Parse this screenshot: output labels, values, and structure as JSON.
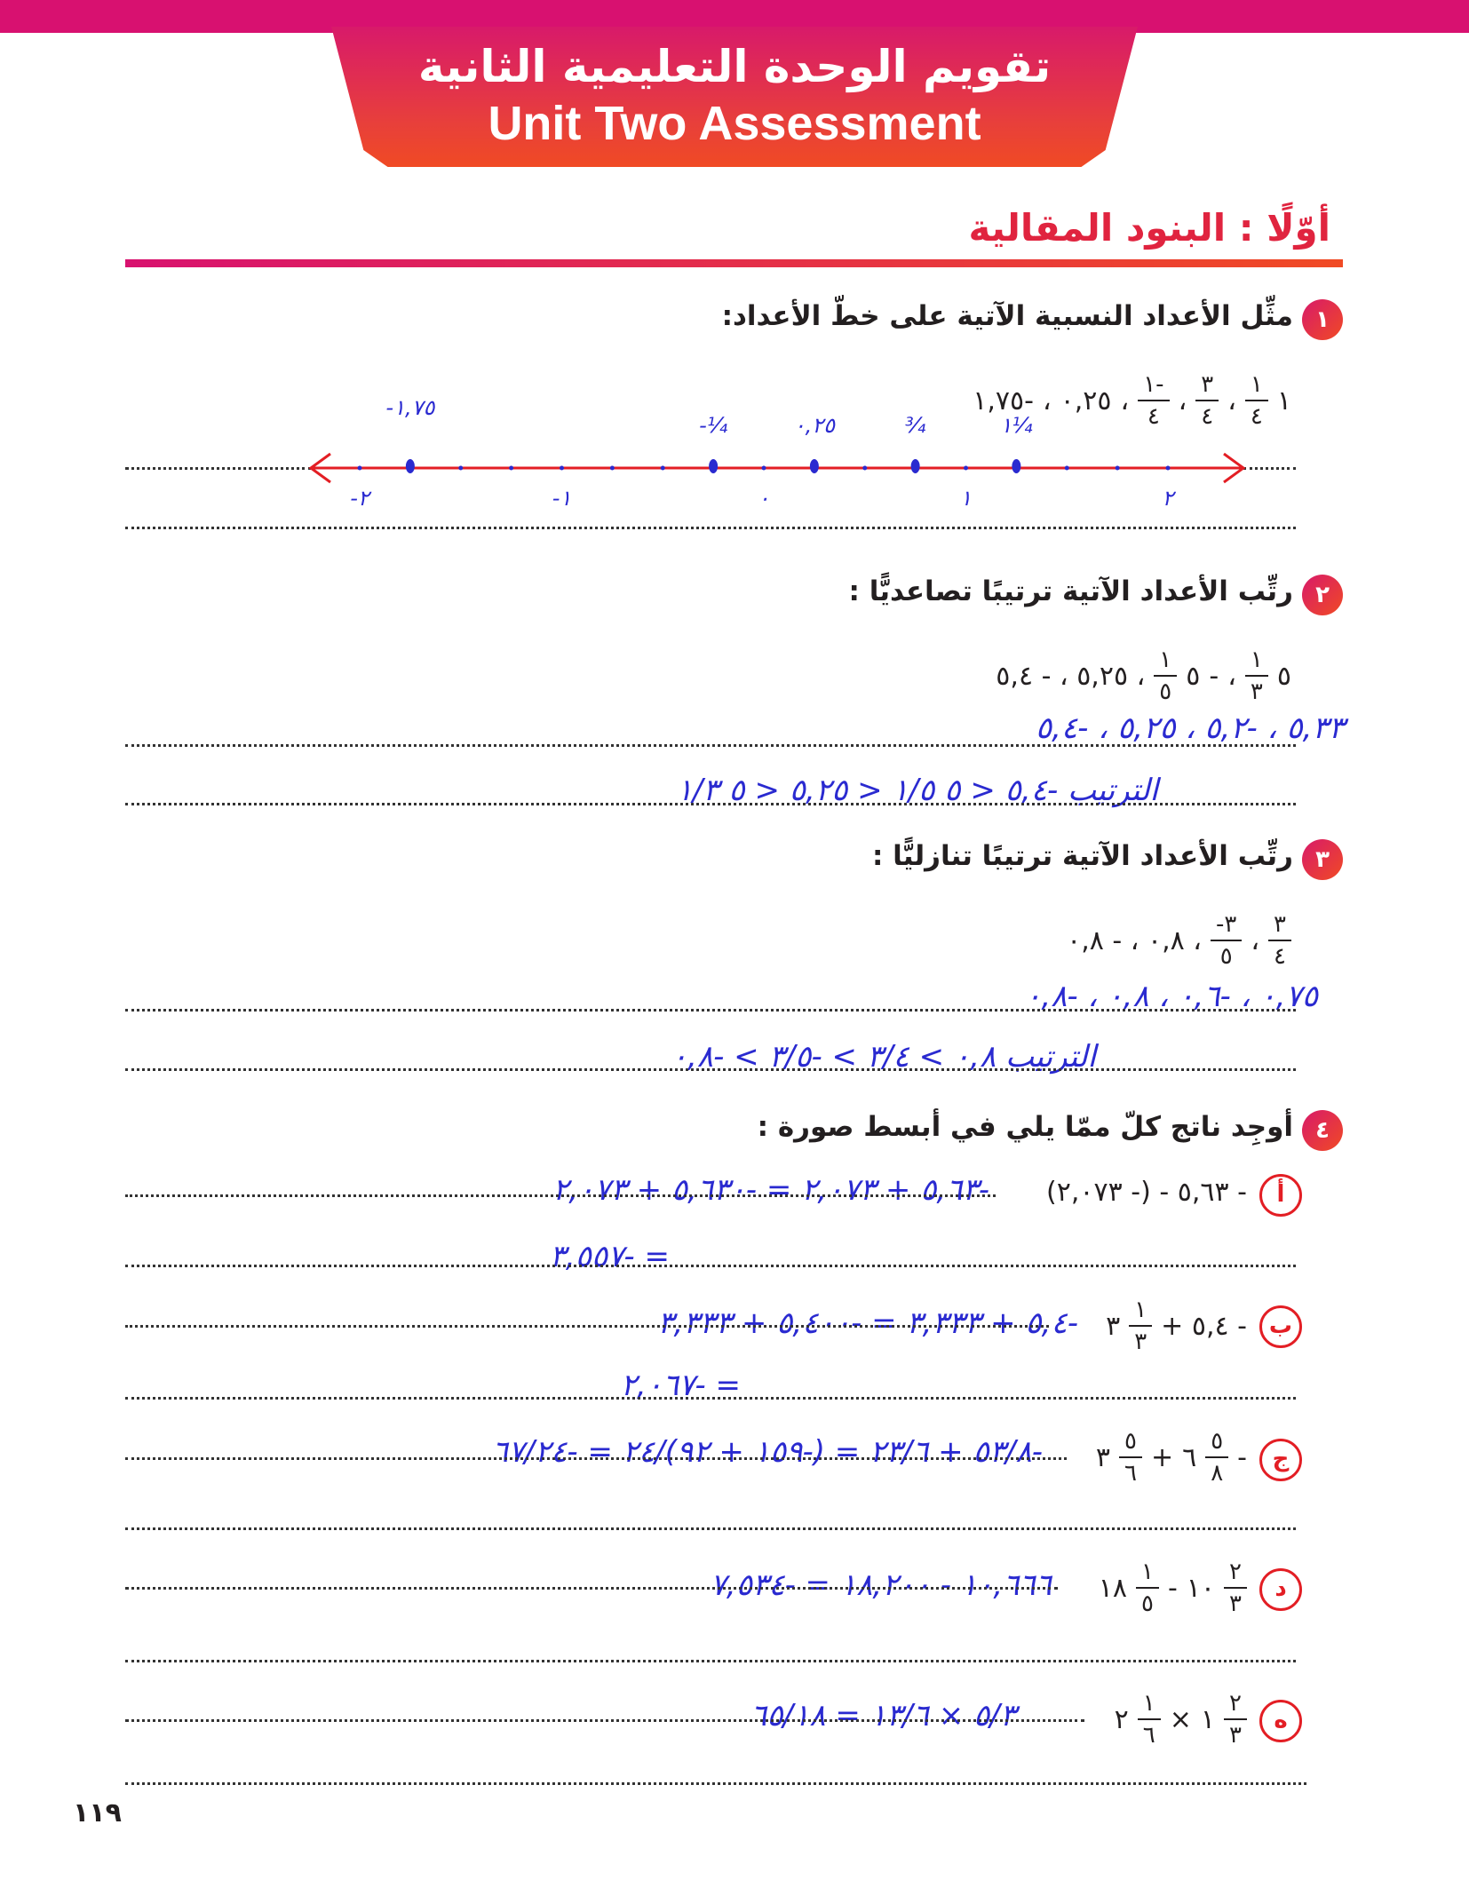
{
  "header": {
    "title_ar": "تقويم الوحدة التعليمية الثانية",
    "title_en": "Unit Two Assessment",
    "colors": {
      "brand": "#d81170",
      "accent": "#f04a24"
    }
  },
  "section": {
    "title": "أوّلًا : البنود المقالية"
  },
  "q1": {
    "num": "١",
    "text": "مثِّل الأعداد النسبية الآتية على خطّ الأعداد:",
    "items": [
      "١",
      "١",
      "٤",
      "،",
      "٣",
      "٤",
      "،",
      "-١",
      "٤",
      "،",
      "٠,٢٥",
      "،",
      "-١,٧٥"
    ],
    "numberline": {
      "min": -2,
      "max": 2,
      "step": 0.25,
      "points": [
        -1.75,
        -0.25,
        0.25,
        0.75,
        1.25
      ],
      "point_labels": [
        "-١,٧٥",
        "-¼",
        "٠,٢٥",
        "¾",
        "١¼"
      ],
      "tick_labels": [
        "-٢",
        "-١",
        "٠",
        "١",
        "٢"
      ],
      "tick_values": [
        -2,
        -1,
        0,
        1,
        2
      ]
    }
  },
  "q2": {
    "num": "٢",
    "text": "رتِّب الأعداد الآتية ترتيبًا تصاعديًّا :",
    "expr": {
      "a_whole": "٥",
      "a_n": "١",
      "a_d": "٣",
      "b_whole": "٥",
      "b_n": "١",
      "b_d": "٥",
      "rest": "، ٥,٢٥ ، - ٥,٤",
      "sep": "،",
      "neg": "-"
    },
    "hw": [
      "٥,٣٣ ، -٥,٢ ، ٥,٢٥ ، -٥,٤",
      "الترتيب -٥,٤ < ٥ ١/٥ < ٥,٢٥ < ٥ ١/٣"
    ]
  },
  "q3": {
    "num": "٣",
    "text": "رتِّب الأعداد الآتية ترتيبًا تنازليًّا :",
    "expr": {
      "a_n": "٣",
      "a_d": "٤",
      "b_n": "٣-",
      "b_d": "٥",
      "rest": "، ٠,٨ ، - ٠,٨",
      "sep": "،"
    },
    "hw": [
      "٠,٧٥ ، -٠,٦ ، ٠,٨ ، -٠,٨",
      "الترتيب ٠,٨ > ٣/٤ > -٣/٥ > -٠,٨"
    ]
  },
  "q4": {
    "num": "٤",
    "text": "أوجِد ناتج كلّ ممّا يلي في أبسط صورة :",
    "parts": [
      {
        "letter": "أ",
        "expr": "- ٥,٦٣ - (- ٢,٠٧٣)",
        "hw": [
          "-٥,٦٣ + ٢,٠٧٣ = -٥,٦٣٠ + ٢,٠٧٣",
          "= -٣,٥٥٧"
        ]
      },
      {
        "letter": "ب",
        "expr_pre": "- ٥,٤ +",
        "whole": "٣",
        "n": "١",
        "d": "٣",
        "hw": [
          "-٥,٤ + ٣,٣٣٣ = -٥,٤٠٠ + ٣,٣٣٣",
          "= -٢,٠٦٧"
        ]
      },
      {
        "letter": "ج",
        "w1": "٦",
        "n1": "٥",
        "d1": "٨",
        "op": "+",
        "w2": "٣",
        "n2": "٥",
        "d2": "٦",
        "neg": "-",
        "hw": [
          "-٥٣/٨ + ٢٣/٦ = (-١٥٩ + ٩٢)/٢٤ = -٦٧/٢٤"
        ]
      },
      {
        "letter": "د",
        "w1": "١٠",
        "n1": "٢",
        "d1": "٣",
        "op": "-",
        "w2": "١٨",
        "n2": "١",
        "d2": "٥",
        "hw": [
          "١٠,٦٦٦ - ١٨,٢٠٠ = -٧,٥٣٤"
        ]
      },
      {
        "letter": "ه",
        "w1": "١",
        "n1": "٢",
        "d1": "٣",
        "op": "×",
        "w2": "٢",
        "n2": "١",
        "d2": "٦",
        "hw": [
          "٥/٣ × ١٣/٦ = ٦٥/١٨"
        ]
      }
    ]
  },
  "page_number": "١١٩"
}
